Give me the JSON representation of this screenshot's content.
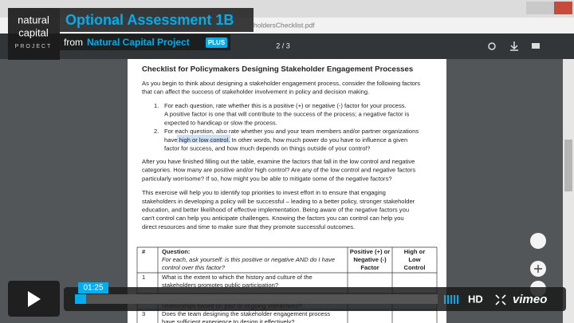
{
  "player": {
    "logo": [
      "natural",
      "capital",
      "PROJECT"
    ],
    "title": "Optional Assessment 1B",
    "from_label": "from",
    "channel": "Natural Capital Project",
    "badge": "PLUS",
    "time": "01:25",
    "hd": "HD",
    "brand": "vimeo"
  },
  "viewer": {
    "filename": "holdersChecklist.pdf",
    "page_indicator": "2 / 3"
  },
  "document": {
    "heading": "Checklist for Policymakers Designing Stakeholder Engagement Processes",
    "intro": [
      "As you begin to think about designing a stakeholder engagement process, consider the following factors",
      "that can affect the success of stakeholder involvement in policy and decision making."
    ],
    "list": [
      {
        "number": "1.",
        "lines": [
          "For each question, rate whether this is a positive (+) or negative (-) factor for your process.",
          "A positive factor is one that will contribute to the success of the process; a negative factor is",
          "expected to handicap or slow the process."
        ]
      },
      {
        "number": "2.",
        "lines": [
          "For each question, also rate whether you and your team members and/or partner organizations",
          "have high or low control.  In other words, how much power do you have to influence a given",
          "factor for success, and how much depends on things outside of your control?"
        ]
      }
    ],
    "highlight": "have high or low control.",
    "paragraphs": [
      [
        "After you have finished filling out the table, examine the factors that fall in the low control and negative",
        "categories.  How many are positive and/or high control?  Are any of the low control and negative factors",
        "particularly worrisome?  If so, how might you be able to mitigate some of the negative factors?"
      ],
      [
        "This exercise will help you to identify top priorities to invest effort in to ensure that engaging",
        "stakeholders in developing a policy will be successful – leading to a better policy, stronger stakeholder",
        "education, and better likelihood of effective implementation.  Being aware of the negative factors you",
        "can't control can help you anticipate challenges.  Knowing the factors you can control can help you",
        "direct resources and time to make sure that they promote successful outcomes."
      ]
    ],
    "table": {
      "header": [
        [
          "#"
        ],
        [
          "Question:",
          "For each, ask yourself: is this positive or negative AND do I have",
          "control over this factor?"
        ],
        [
          "Positive (+) or",
          "Negative (-)",
          "Factor"
        ],
        [
          "High or",
          "Low",
          "Control"
        ]
      ],
      "rows": [
        [
          "1",
          [
            "What is the extent to which the history and culture of the",
            "stakeholders promotes public participation?"
          ]
        ],
        [
          "2",
          [
            "Do stakeholders and policymakers have trustful and productive",
            "relationships based on past or ongoing interactions?"
          ]
        ],
        [
          "3",
          [
            "Does the team designing the stakeholder engagement process",
            "have sufficient experience to design it effectively?"
          ]
        ]
      ]
    }
  }
}
